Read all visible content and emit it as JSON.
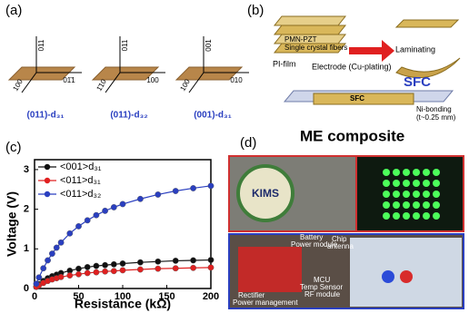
{
  "panel_labels": [
    "(a)",
    "(b)",
    "(c)",
    "(d)"
  ],
  "panel_a": {
    "diagrams": [
      {
        "axes": [
          "011",
          "100",
          "01̄1"
        ],
        "label": "(011)-d₃₁"
      },
      {
        "axes": [
          "011",
          "1̄10",
          "100"
        ],
        "label": "(011)-d₃₂"
      },
      {
        "axes": [
          "001",
          "100",
          "010"
        ],
        "label": "(001)-d₃₁"
      }
    ]
  },
  "panel_b": {
    "pmn": "PMN-PZT",
    "fibers": "Single crystal fibers",
    "laminating": "Laminating",
    "pi_film": "PI-film",
    "electrode": "Electrode (Cu-plating)",
    "sfc_big": "SFC",
    "sfc_small": "SFC",
    "ni_bonding": "Ni-bonding",
    "thickness": "(t~0.25 mm)",
    "me": "ME composite"
  },
  "chart_data": {
    "type": "line",
    "xlabel": "Resistance (kΩ)",
    "ylabel": "Voltage (V)",
    "x": [
      2,
      5,
      10,
      15,
      20,
      25,
      30,
      40,
      50,
      60,
      70,
      80,
      90,
      100,
      120,
      140,
      160,
      180,
      200
    ],
    "series": [
      {
        "name": "<001>d₃₁",
        "color": "#111111",
        "values": [
          0.05,
          0.11,
          0.19,
          0.26,
          0.31,
          0.35,
          0.39,
          0.45,
          0.5,
          0.54,
          0.57,
          0.59,
          0.61,
          0.63,
          0.66,
          0.68,
          0.7,
          0.71,
          0.72
        ]
      },
      {
        "name": "<011>d₃₁",
        "color": "#e02020",
        "values": [
          0.04,
          0.08,
          0.14,
          0.19,
          0.23,
          0.26,
          0.29,
          0.33,
          0.36,
          0.39,
          0.41,
          0.43,
          0.44,
          0.46,
          0.48,
          0.5,
          0.51,
          0.52,
          0.53
        ]
      },
      {
        "name": "<011>d₃₂",
        "color": "#2a3fc0",
        "values": [
          0.12,
          0.28,
          0.51,
          0.71,
          0.88,
          1.03,
          1.16,
          1.39,
          1.57,
          1.72,
          1.85,
          1.96,
          2.05,
          2.13,
          2.26,
          2.37,
          2.46,
          2.53,
          2.59
        ]
      }
    ],
    "xlim": [
      0,
      200
    ],
    "ylim": [
      0,
      3.25
    ],
    "xticks": [
      0,
      50,
      100,
      150,
      200
    ],
    "yticks": [
      0,
      1,
      2,
      3
    ]
  },
  "panel_d": {
    "kims": "KIMS",
    "battery": "Battery",
    "power_module": "Power module",
    "chip": "Chip",
    "antenna": "antenna",
    "rectifier": "Rectifier",
    "power_management": "Power management",
    "mcu": "MCU",
    "temp_sensor": "Temp Sensor",
    "rf_module": "RF module"
  }
}
